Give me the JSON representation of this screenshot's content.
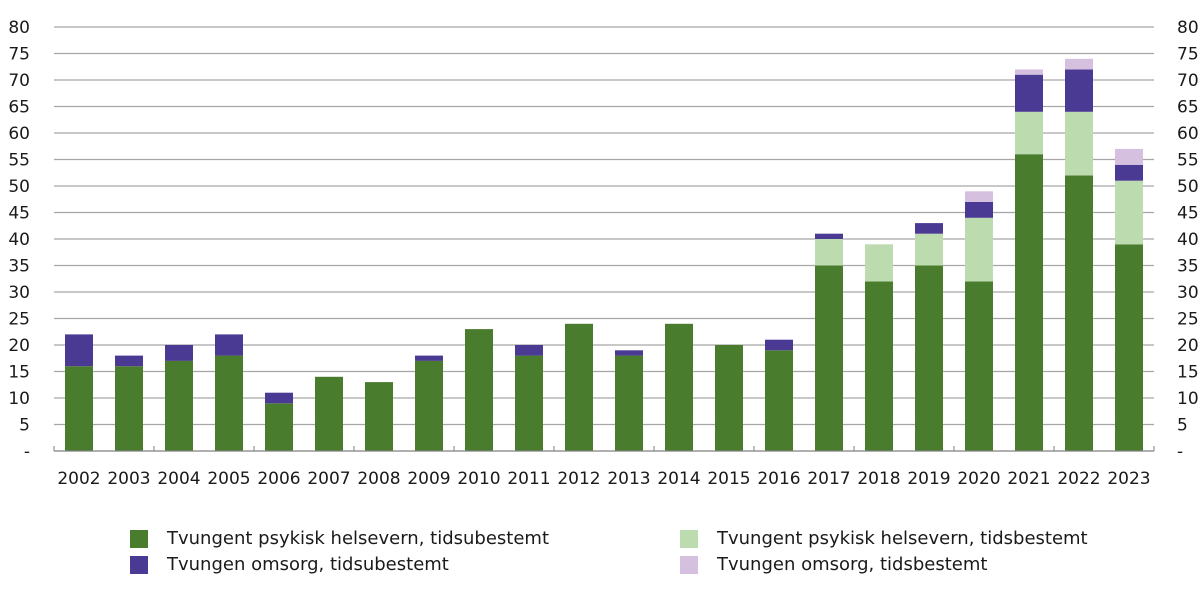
{
  "chart_data": {
    "type": "bar",
    "stacked": true,
    "title": "",
    "xlabel": "",
    "ylabel": "",
    "ylim": [
      0,
      80
    ],
    "yticks": [
      "-",
      "5",
      "10",
      "15",
      "20",
      "25",
      "30",
      "35",
      "40",
      "45",
      "50",
      "55",
      "60",
      "65",
      "70",
      "75",
      "80"
    ],
    "dual_y_axis": true,
    "grid": true,
    "legend_position": "bottom",
    "categories": [
      "2002",
      "2003",
      "2004",
      "2005",
      "2006",
      "2007",
      "2008",
      "2009",
      "2010",
      "2011",
      "2012",
      "2013",
      "2014",
      "2015",
      "2016",
      "2017",
      "2018",
      "2019",
      "2020",
      "2021",
      "2022",
      "2023"
    ],
    "series": [
      {
        "name": "Tvungent psykisk helsevern, tidsubestemt",
        "color": "#4a7c2e",
        "values": [
          16,
          16,
          17,
          18,
          9,
          14,
          13,
          17,
          23,
          18,
          24,
          18,
          24,
          20,
          19,
          35,
          32,
          35,
          32,
          56,
          52,
          39
        ]
      },
      {
        "name": "Tvungent psykisk helsevern, tidsbestemt",
        "color": "#bcdcaf",
        "values": [
          0,
          0,
          0,
          0,
          0,
          0,
          0,
          0,
          0,
          0,
          0,
          0,
          0,
          0,
          0,
          5,
          7,
          6,
          12,
          8,
          12,
          12
        ]
      },
      {
        "name": "Tvungen omsorg, tidsubestemt",
        "color": "#4b3a93",
        "values": [
          6,
          2,
          3,
          4,
          2,
          0,
          0,
          1,
          0,
          2,
          0,
          1,
          0,
          0,
          2,
          1,
          0,
          2,
          3,
          7,
          8,
          3
        ]
      },
      {
        "name": "Tvungen omsorg, tidsbestemt",
        "color": "#d5c0df",
        "values": [
          0,
          0,
          0,
          0,
          0,
          0,
          0,
          0,
          0,
          0,
          0,
          0,
          0,
          0,
          0,
          0,
          0,
          0,
          2,
          1,
          2,
          3
        ]
      }
    ]
  },
  "legend": {
    "items": [
      {
        "label": "Tvungent psykisk helsevern, tidsubestemt",
        "color": "#4a7c2e"
      },
      {
        "label": "Tvungent psykisk helsevern, tidsbestemt",
        "color": "#bcdcaf"
      },
      {
        "label": "Tvungen omsorg, tidsubestemt",
        "color": "#4b3a93"
      },
      {
        "label": "Tvungen omsorg, tidsbestemt",
        "color": "#d5c0df"
      }
    ]
  }
}
